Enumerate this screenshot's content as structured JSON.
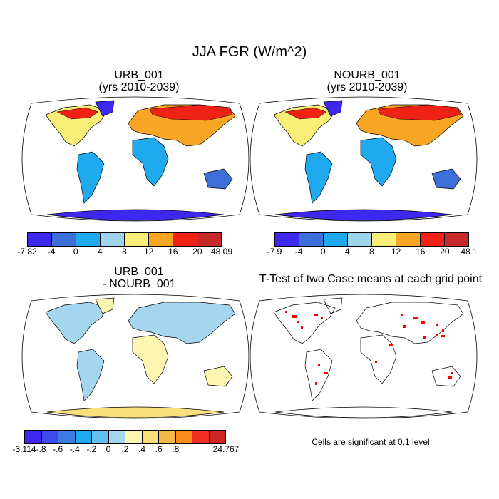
{
  "title": "JJA FGR (W/m^2)",
  "panels": [
    {
      "title_line1": "URB_001",
      "title_line2": "(yrs 2010-2039)"
    },
    {
      "title_line1": "NOURB_001",
      "title_line2": "(yrs 2010-2039)"
    },
    {
      "title_line1": "URB_001",
      "title_line2": "- NOURB_001"
    },
    {
      "title_line1": "T-Test of two Case means at each grid point",
      "title_line2": ""
    }
  ],
  "significance_note": "Cells are significant at 0.1 level",
  "colorbars": [
    {
      "labels": [
        "-7.82",
        "-4",
        "0",
        "4",
        "8",
        "12",
        "16",
        "20",
        "48.09"
      ],
      "colors": [
        "#3c28ef",
        "#3d6fdb",
        "#1fa9ee",
        "#9ed4ec",
        "#f9ef78",
        "#f8a623",
        "#f02216",
        "#c72828"
      ]
    },
    {
      "labels": [
        "-7.9",
        "-4",
        "0",
        "4",
        "8",
        "12",
        "16",
        "20",
        "48.1"
      ],
      "colors": [
        "#3c28ef",
        "#3d6fdb",
        "#1fa9ee",
        "#9ed4ec",
        "#f9ef78",
        "#f8a623",
        "#f02216",
        "#c72828"
      ]
    },
    {
      "labels": [
        "-3.114",
        "-.8",
        "-.6",
        "-.4",
        "-.2",
        "0",
        ".2",
        ".4",
        ".6",
        ".8",
        "24.767"
      ],
      "colors": [
        "#3c28ef",
        "#3d4bed",
        "#3d7ae2",
        "#1fa9ee",
        "#62c0ef",
        "#a5d6ef",
        "#fdf6b0",
        "#fae07a",
        "#f7b84a",
        "#f88b1d",
        "#f03020",
        "#cc2626"
      ]
    }
  ],
  "significant_cell_color": "#ff0000"
}
